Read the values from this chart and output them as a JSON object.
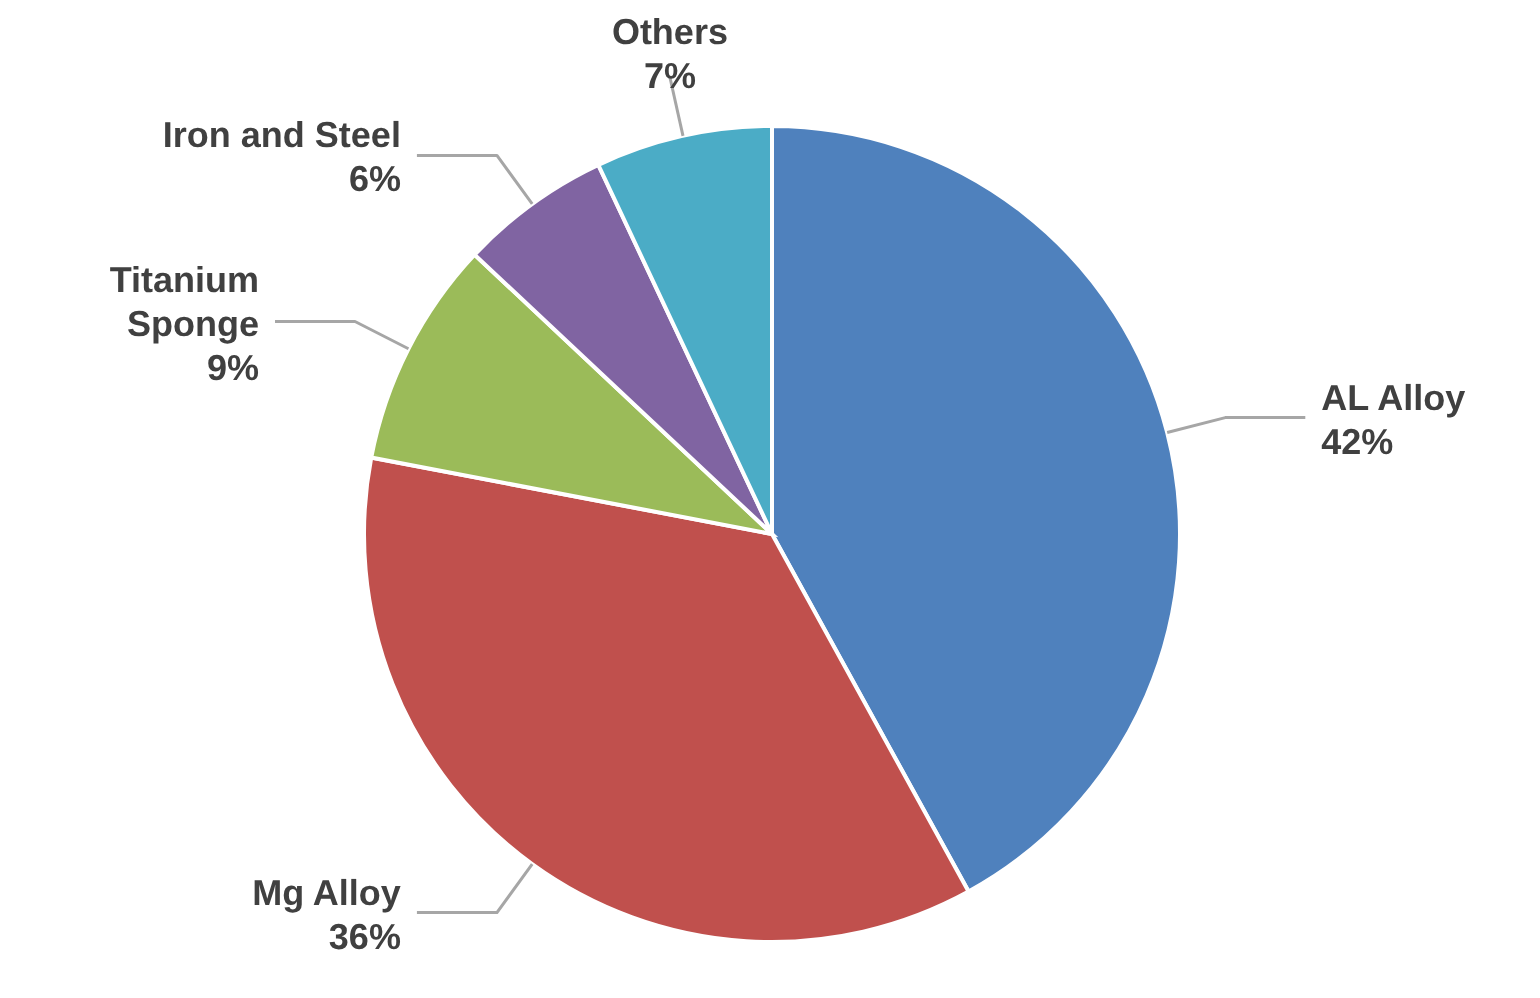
{
  "chart_data": {
    "type": "pie",
    "categories": [
      "AL Alloy",
      "Mg Alloy",
      "Titanium Sponge",
      "Iron and Steel",
      "Others"
    ],
    "values": [
      42,
      36,
      9,
      6,
      7
    ],
    "value_labels": [
      "42%",
      "36%",
      "9%",
      "6%",
      "7%"
    ],
    "colors": [
      "#4f81bd",
      "#c0504d",
      "#9bbb59",
      "#8064a2",
      "#4bacc6"
    ]
  }
}
